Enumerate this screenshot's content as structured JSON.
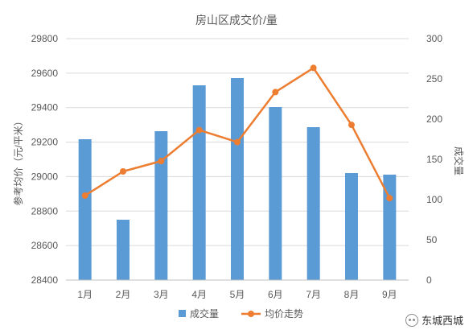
{
  "chart_data": {
    "type": "bar+line",
    "title": "房山区成交价/量",
    "categories": [
      "1月",
      "2月",
      "3月",
      "4月",
      "5月",
      "6月",
      "7月",
      "8月",
      "9月"
    ],
    "series": [
      {
        "name": "成交量",
        "type": "bar",
        "axis": "right",
        "color": "#5b9bd5",
        "values": [
          175,
          75,
          185,
          242,
          251,
          215,
          190,
          133,
          131
        ]
      },
      {
        "name": "均价走势",
        "type": "line",
        "axis": "left",
        "color": "#ed7d31",
        "values": [
          28890,
          29030,
          29090,
          29270,
          29200,
          29490,
          29630,
          29300,
          28875
        ]
      }
    ],
    "y_left": {
      "label": "参考均价（元/平米）",
      "range": [
        28400,
        29800
      ],
      "ticks": [
        "28400",
        "28600",
        "28800",
        "29000",
        "29200",
        "29400",
        "29600",
        "29800"
      ]
    },
    "y_right": {
      "label": "成交量",
      "range": [
        0,
        300
      ],
      "ticks": [
        "0",
        "50",
        "100",
        "150",
        "200",
        "250",
        "300"
      ]
    },
    "grid": true,
    "legend": "bottom-center"
  },
  "watermark": {
    "text": "东城西城",
    "icon": "wechat-icon"
  }
}
